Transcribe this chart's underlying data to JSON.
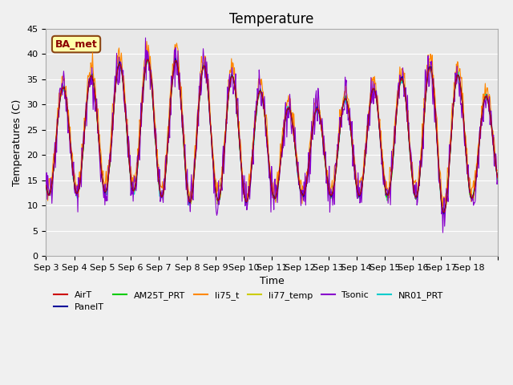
{
  "title": "Temperature",
  "ylabel": "Temperatures (C)",
  "xlabel": "Time",
  "ylim": [
    0,
    45
  ],
  "annotation_text": "BA_met",
  "series_colors": {
    "AirT": "#cc0000",
    "PanelT": "#000099",
    "AM25T_PRT": "#00cc00",
    "li75_t": "#ff8800",
    "li77_temp": "#cccc00",
    "Tsonic": "#8800cc",
    "NR01_PRT": "#00cccc"
  },
  "xtick_positions": [
    0,
    1,
    2,
    3,
    4,
    5,
    6,
    7,
    8,
    9,
    10,
    11,
    12,
    13,
    14,
    15,
    16
  ],
  "xtick_labels": [
    "Sep 3",
    "Sep 4",
    "Sep 5",
    "Sep 6",
    "Sep 7",
    "Sep 8",
    "Sep 9",
    "Sep 10",
    "Sep 11",
    "Sep 12",
    "Sep 13",
    "Sep 14",
    "Sep 15",
    "Sep 16",
    "Sep 17",
    "Sep 18",
    ""
  ],
  "ytick_positions": [
    0,
    5,
    10,
    15,
    20,
    25,
    30,
    35,
    40,
    45
  ],
  "axes_background": "#e8e8e8",
  "fig_background": "#f0f0f0",
  "grid_color": "#ffffff",
  "title_fontsize": 12,
  "axes_label_fontsize": 9,
  "tick_fontsize": 8,
  "legend_fontsize": 8,
  "n_days": 16,
  "pts_per_day": 48
}
